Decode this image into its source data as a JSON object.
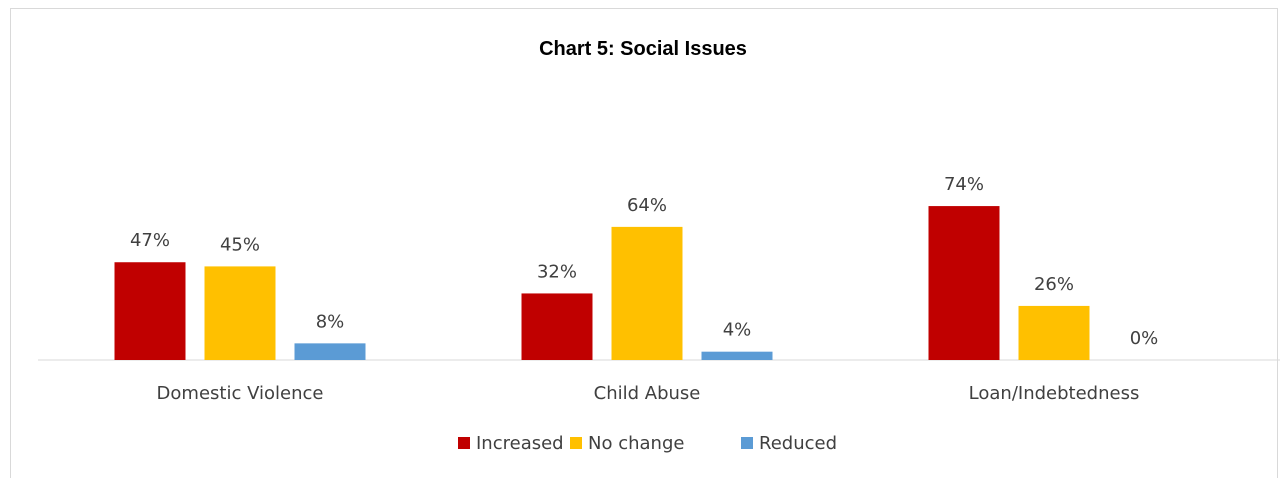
{
  "chart_data": {
    "type": "bar",
    "title": "Chart 5: Social Issues",
    "categories": [
      "Domestic Violence",
      "Child Abuse",
      "Loan/Indebtedness"
    ],
    "series": [
      {
        "name": "Increased",
        "values": [
          47,
          32,
          74
        ],
        "labels": [
          "47%",
          "32%",
          "74%"
        ],
        "color": "#c00000"
      },
      {
        "name": "No change",
        "values": [
          45,
          64,
          26
        ],
        "labels": [
          "45%",
          "64%",
          "26%"
        ],
        "color": "#ffc000"
      },
      {
        "name": "Reduced",
        "values": [
          8,
          4,
          0
        ],
        "labels": [
          "8%",
          "4%",
          "0%"
        ],
        "color": "#5b9bd5"
      }
    ],
    "ylim": [
      0,
      100
    ],
    "grid": false,
    "legend_position": "bottom"
  }
}
